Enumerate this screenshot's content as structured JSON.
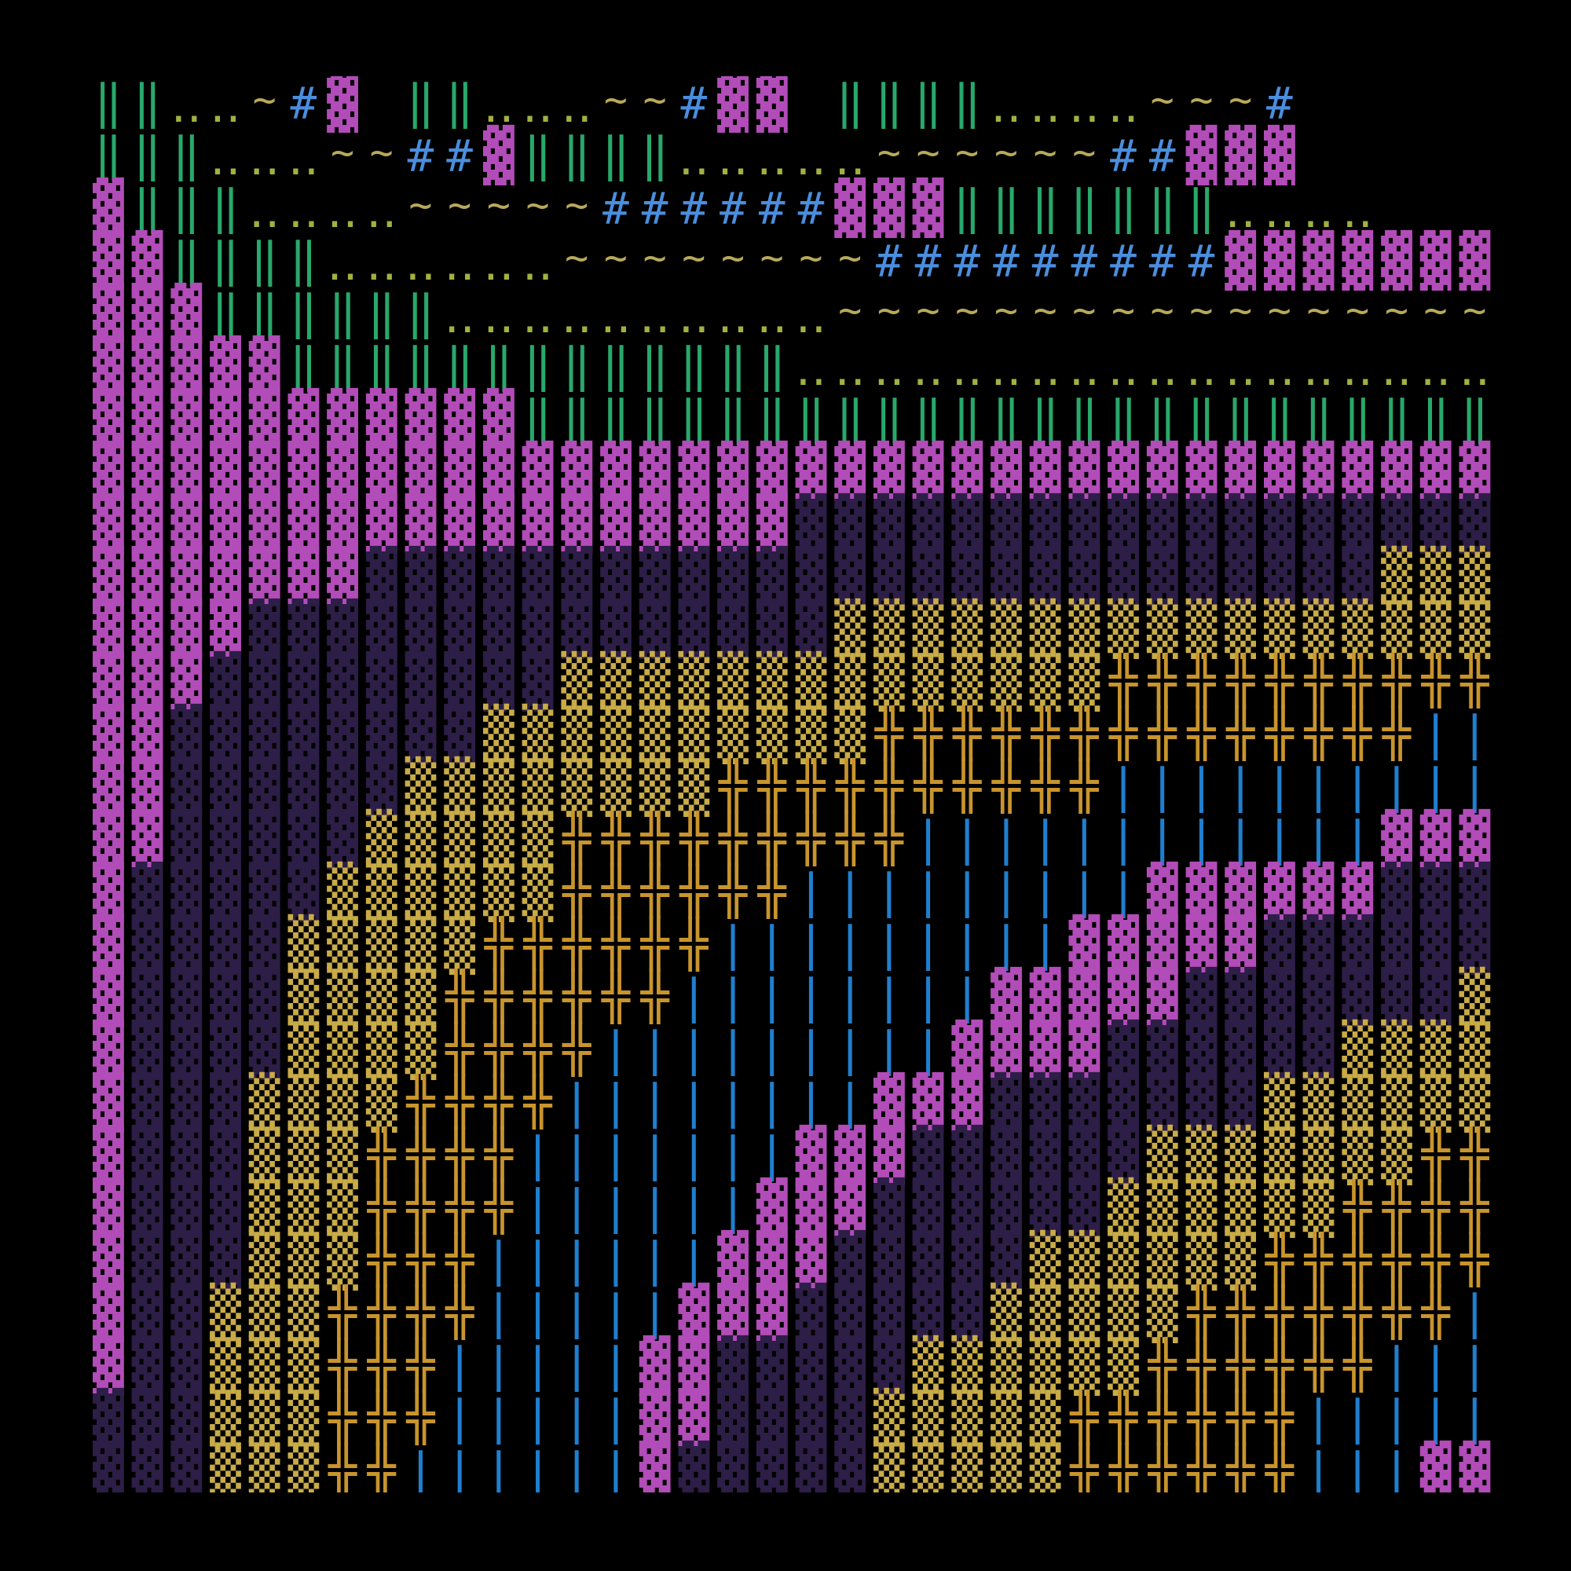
{
  "palette": {
    "M": {
      "char": "▓",
      "color": "#b24cb8",
      "kind": "block",
      "name": "magenta-block"
    },
    "D": {
      "char": "▓",
      "color": "#2c1e46",
      "kind": "shade",
      "name": "dark-indigo-shade"
    },
    "Y": {
      "char": "▒",
      "color": "#c9ac47",
      "kind": "block",
      "name": "yellow-shade"
    },
    "C": {
      "char": "╬",
      "color": "#c8942c",
      "kind": "cross",
      "name": "amber-cross"
    },
    "B": {
      "char": "|",
      "color": "#1f7fcf",
      "kind": "bar",
      "name": "blue-bar"
    },
    "G": {
      "char": "‖",
      "color": "#28a86b",
      "kind": "bar",
      "name": "green-double-bar"
    },
    ".": {
      "char": "‥",
      "color": "#a3b040",
      "kind": "dots",
      "name": "olive-dots"
    },
    "~": {
      "char": "~",
      "color": "#b8a95a",
      "kind": "wave",
      "name": "tan-wave"
    },
    "#": {
      "char": "#",
      "color": "#4a8ede",
      "kind": "hash",
      "name": "blue-hash"
    },
    " ": {
      "char": " ",
      "color": "#000000",
      "kind": "block",
      "name": "blank"
    }
  },
  "grid": [
    "GG..~#M GG...~~#MM GGGG....~~~#",
    "GGG...~~##MGGGG.....~~~~~~##MMM",
    "MGGG....~~~~~######MMMGGGGGGG....",
    "MMGGGG......~~~~~~~~#########MMMMMMM",
    "MMMGGGGGG..........~~~~~~~~~~~~~~~~~",
    "MMMMMGGGGGGGGGGGGG..................",
    "MMMMMMMMMMMGGGGGGGGGGGGGGGGGGGGGGGGG",
    "MMMMMMMMMMMMMMMMMMMMMMMMMMMMMMMMMMMM",
    "MMMMMMMMMMMMMMMMMMDDDDDDDDDDDDDDDDDD",
    "MMMMMMMDDDDDDDDDDDDDDDDDDDDDDDDDDYYY",
    "MMMMDDDDDDDDDDDDDDDYYYYYYYYYYYYYYYYY",
    "MMMDDDDDDDDDYYYYYYYYYYYYYYCCCCCCCCCC",
    "MMDDDDDDDDYYYYYYYYYYCCCCCCCCCCCCCCBB",
    "MMDDDDDDYYYYYYYYCCCCCCCCCCBBBBBBBBBB",
    "MMDDDDDYYYYYCCCCCCCCCBBBBBBBBBBBBMMM",
    "MDDDDDYYYYYYCCCCCCBBBBBBBBBMMMMMMDDD",
    "MDDDDYYYYYCCCCCCBBBBBBBBBMMMMMDDDDDD",
    "MDDDDYYYYCCCCCCBBBBBBBBMMMMMDDDDDDDY",
    "MDDDDYYYYCCCCBBBBBBBBBMMMMDDDDDDYYYY",
    "MDDDYYYYCCCCBBBBBBBBMMMDDDDDDDYYYYYY",
    "MDDDYYYCCCCBBBBBBBMMMDDDDDDYYYYYYYCC",
    "MDDDYYYCCCCBBBBBBMMMDDDDDDYYYYYYCCCC",
    "MDDDYYYCCCBBBBBBMMMDDDDDYYYYYYCCCCCC",
    "MDDYYYCCCCBBBBBMMMDDDDDYYYYYCCCCCCCB",
    "MDDYYYCCCBBBBBMMDDDDDYYYYYYCCCCCCBBB",
    "DDDYYYCCCBBBBBMMDDDDYYYYYCCCCCCBBBBB",
    "DDDYYYCCBBBBBBMDDDDDYYYYYCCCCCCBBBMM"
  ]
}
